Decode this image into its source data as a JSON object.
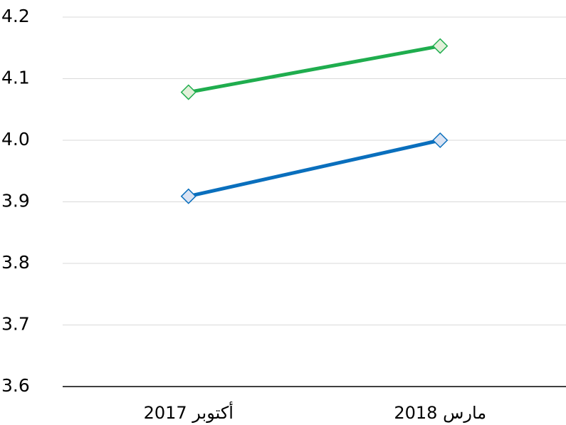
{
  "chart_data": {
    "type": "line",
    "categories": [
      "أكتوبر 2017",
      "مارس 2018"
    ],
    "series": [
      {
        "color": "#1fad4e",
        "marker_color": "#e2f0d9",
        "values": [
          4.078,
          4.153
        ]
      },
      {
        "color": "#0a6fbd",
        "marker_color": "#dae3f3",
        "values": [
          3.909,
          4.0
        ]
      }
    ],
    "ylim": [
      3.6,
      4.2
    ],
    "yticks": [
      3.6,
      3.7,
      3.8,
      3.9,
      {
        "value": 4,
        "label": "4.0"
      },
      4.1,
      4.2
    ],
    "grid": true
  }
}
